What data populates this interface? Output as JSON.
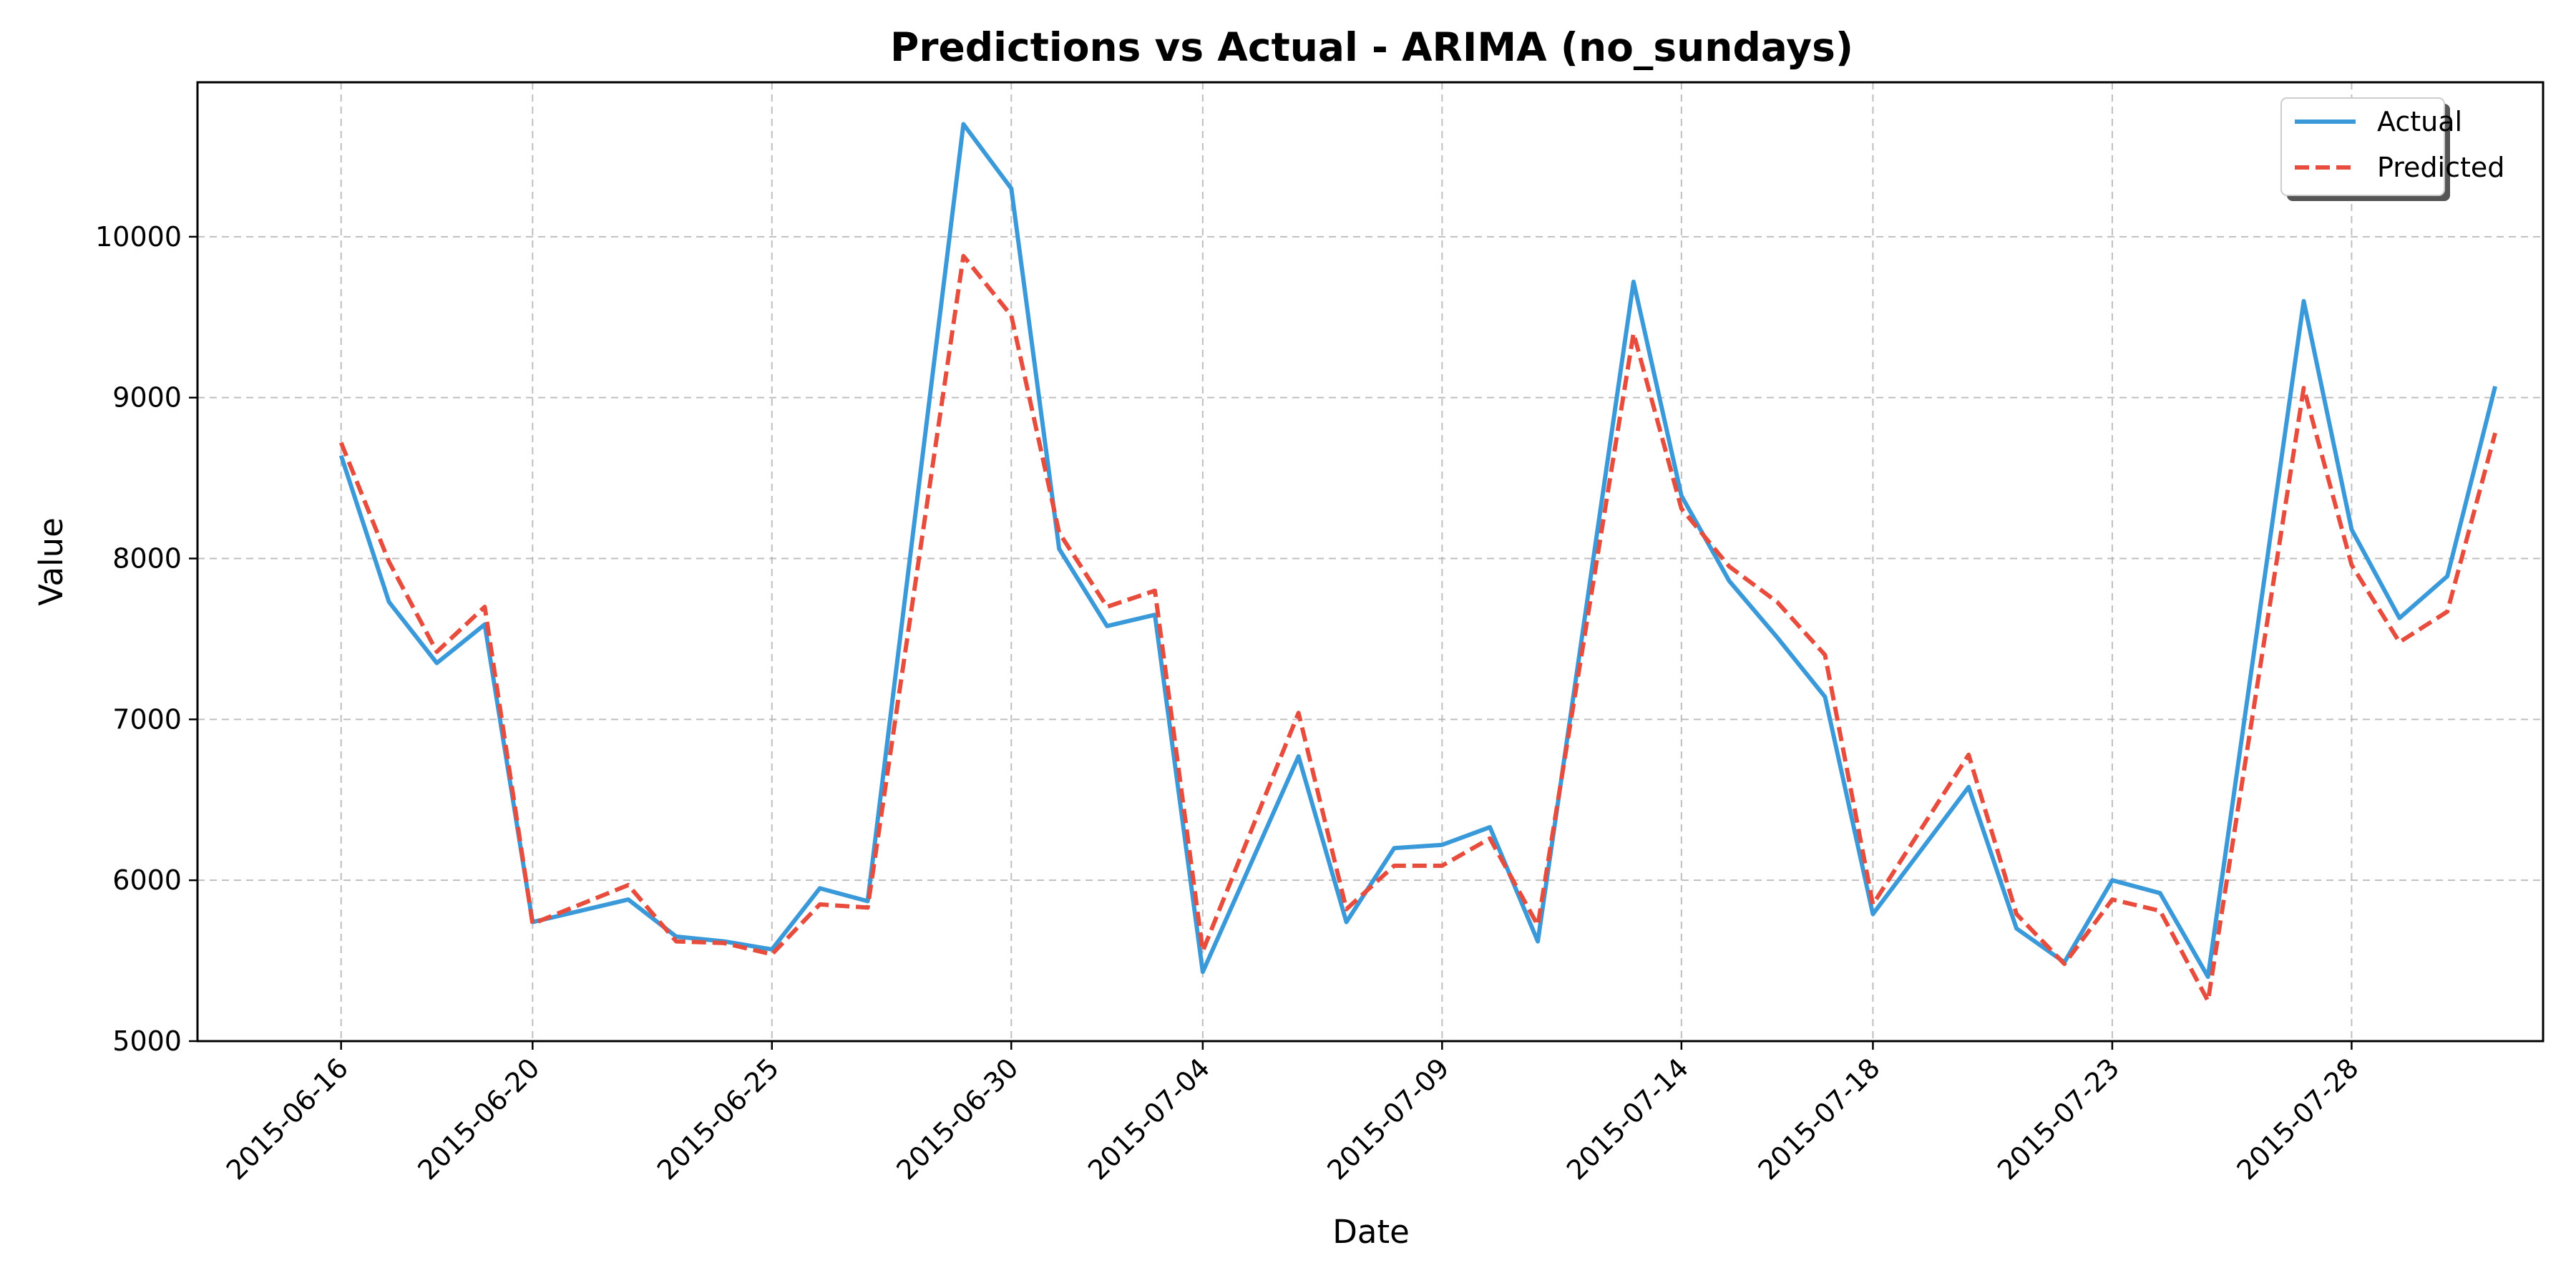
{
  "chart_data": {
    "type": "line",
    "title": "Predictions vs Actual - ARIMA (no_sundays)",
    "xlabel": "Date",
    "ylabel": "Value",
    "ylim": [
      5000,
      10960
    ],
    "xlim": [
      "2015-06-13",
      "2015-08-01"
    ],
    "grid": true,
    "grid_style": "dashed",
    "legend_position": "top-right",
    "x_ticks": [
      "2015-06-16",
      "2015-06-20",
      "2015-06-25",
      "2015-06-30",
      "2015-07-04",
      "2015-07-09",
      "2015-07-14",
      "2015-07-18",
      "2015-07-23",
      "2015-07-28"
    ],
    "y_ticks": [
      5000,
      6000,
      7000,
      8000,
      9000,
      10000
    ],
    "x": [
      "2015-06-16",
      "2015-06-17",
      "2015-06-18",
      "2015-06-19",
      "2015-06-20",
      "2015-06-22",
      "2015-06-23",
      "2015-06-24",
      "2015-06-25",
      "2015-06-26",
      "2015-06-27",
      "2015-06-29",
      "2015-06-30",
      "2015-07-01",
      "2015-07-02",
      "2015-07-03",
      "2015-07-04",
      "2015-07-06",
      "2015-07-07",
      "2015-07-08",
      "2015-07-09",
      "2015-07-10",
      "2015-07-11",
      "2015-07-13",
      "2015-07-14",
      "2015-07-15",
      "2015-07-16",
      "2015-07-17",
      "2015-07-18",
      "2015-07-20",
      "2015-07-21",
      "2015-07-22",
      "2015-07-23",
      "2015-07-24",
      "2015-07-25",
      "2015-07-27",
      "2015-07-28",
      "2015-07-29",
      "2015-07-30",
      "2015-07-31"
    ],
    "series": [
      {
        "name": "Actual",
        "color": "#3a9ad9",
        "style": "solid",
        "values": [
          8640,
          7730,
          7350,
          7590,
          5740,
          5880,
          5650,
          5620,
          5570,
          5950,
          5870,
          10700,
          10300,
          8060,
          7580,
          7650,
          5430,
          6770,
          5740,
          6200,
          6220,
          6330,
          5620,
          9720,
          8390,
          7860,
          7510,
          7140,
          5790,
          6580,
          5700,
          5490,
          6000,
          5920,
          5400,
          9600,
          8180,
          7630,
          7890,
          9070
        ]
      },
      {
        "name": "Predicted",
        "color": "#e74c3c",
        "style": "dashed",
        "values": [
          8720,
          7980,
          7420,
          7700,
          5730,
          5970,
          5620,
          5610,
          5540,
          5850,
          5830,
          9880,
          9510,
          8160,
          7700,
          7800,
          5560,
          7040,
          5820,
          6090,
          6090,
          6260,
          5720,
          9400,
          8310,
          7950,
          7730,
          7400,
          5850,
          6780,
          5790,
          5480,
          5880,
          5810,
          5250,
          9060,
          7960,
          7480,
          7670,
          8780
        ]
      }
    ]
  }
}
